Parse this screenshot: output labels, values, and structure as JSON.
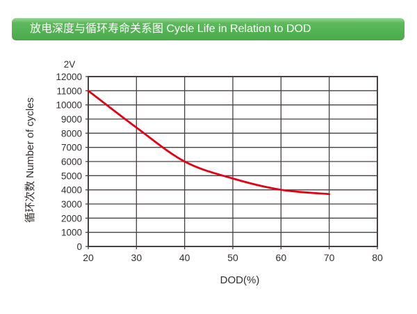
{
  "header": {
    "title": "放电深度与循环寿命关系图 Cycle Life in Relation to DOD",
    "bg_color": "#52b252",
    "text_color": "#ffffff"
  },
  "chart_data": {
    "type": "line",
    "note": "2V",
    "xlabel": "DOD(%)",
    "ylabel": "循环次数 Number of cycles",
    "x": [
      20,
      30,
      40,
      50,
      60,
      70
    ],
    "series": [
      {
        "name": "2V",
        "color": "#e60012",
        "values": [
          11000,
          8400,
          6000,
          4800,
          4000,
          3700
        ]
      }
    ],
    "xlim": [
      20,
      80
    ],
    "xticks": [
      20,
      30,
      40,
      50,
      60,
      70,
      80
    ],
    "ylim": [
      0,
      12000
    ],
    "yticks": [
      0,
      1000,
      2000,
      3000,
      4000,
      5000,
      6000,
      7000,
      8000,
      9000,
      10000,
      11000,
      12000
    ],
    "grid": true,
    "legend": "none",
    "axis_color": "#474040",
    "grid_color": "#474040",
    "label_color": "#332e2c"
  }
}
